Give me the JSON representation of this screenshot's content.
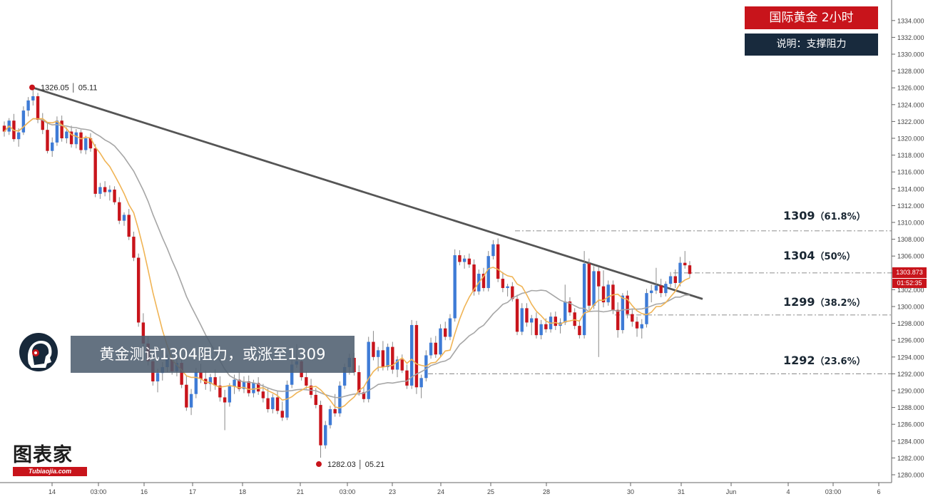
{
  "title": "国际黄金 2小时",
  "subtitle": "说明：支撑阻力",
  "headline": "黄金测试1304阻力，或涨至1309",
  "brand": {
    "name": "图表家",
    "site": "Tubiaojia.com",
    "avatar_icon": "trader-avatar-icon"
  },
  "colors": {
    "up": "#3e7bd6",
    "down": "#c8141b",
    "ma_fast": "#f0b455",
    "ma_slow": "#a6a6a6",
    "trendline": "#555555",
    "level_line": "#9a9a9a",
    "axis": "#666666"
  },
  "price_tag": "1303.873",
  "timer_tag": "01:52:35",
  "chart_data": {
    "type": "candlestick",
    "instrument": "国际黄金",
    "timeframe": "2小时",
    "y_axis": {
      "range": [
        1279,
        1335
      ],
      "ticks": [
        "1280.000",
        "1282.000",
        "1284.000",
        "1286.000",
        "1288.000",
        "1290.000",
        "1292.000",
        "1294.000",
        "1296.000",
        "1298.000",
        "1300.000",
        "1302.000",
        "1304.000",
        "1306.000",
        "1308.000",
        "1310.000",
        "1312.000",
        "1314.000",
        "1316.000",
        "1318.000",
        "1320.000",
        "1322.000",
        "1324.000",
        "1326.000",
        "1328.000",
        "1330.000",
        "1332.000",
        "1334.000"
      ]
    },
    "x_axis": {
      "ticks": [
        "14",
        "03:00",
        "16",
        "17",
        "18",
        "21",
        "03:00",
        "23",
        "24",
        "25",
        "28",
        "30",
        "31",
        "Jun",
        "4",
        "03:00",
        "6"
      ]
    },
    "levels": [
      {
        "price": 1309,
        "label": "1309",
        "pct": "（61.8%）"
      },
      {
        "price": 1304,
        "label": "1304",
        "pct": "（50%）"
      },
      {
        "price": 1299,
        "label": "1299",
        "pct": "（38.2%）"
      },
      {
        "price": 1292,
        "label": "1292",
        "pct": "（23.6%）"
      }
    ],
    "annotations": [
      {
        "label": "1326.05 │ 05.11",
        "price": 1326.05
      },
      {
        "label": "1282.03 │ 05.21",
        "price": 1282.03
      }
    ],
    "current_price": 1303.873,
    "candles": [
      [
        1321.5,
        1322.0,
        1320.2,
        1320.8
      ],
      [
        1320.8,
        1322.4,
        1320.4,
        1322.1
      ],
      [
        1322.1,
        1322.9,
        1319.6,
        1319.9
      ],
      [
        1319.9,
        1321.2,
        1319.0,
        1320.7
      ],
      [
        1320.7,
        1323.8,
        1320.4,
        1323.3
      ],
      [
        1323.3,
        1324.9,
        1322.6,
        1324.5
      ],
      [
        1324.5,
        1326.05,
        1323.9,
        1325.0
      ],
      [
        1325.0,
        1325.4,
        1321.8,
        1322.2
      ],
      [
        1322.2,
        1323.0,
        1320.5,
        1321.0
      ],
      [
        1321.0,
        1321.8,
        1318.2,
        1318.5
      ],
      [
        1318.5,
        1320.1,
        1317.8,
        1319.5
      ],
      [
        1319.5,
        1322.6,
        1319.1,
        1322.1
      ],
      [
        1322.1,
        1322.7,
        1319.6,
        1320.0
      ],
      [
        1320.0,
        1321.3,
        1319.4,
        1320.8
      ],
      [
        1320.8,
        1321.5,
        1318.9,
        1319.3
      ],
      [
        1319.3,
        1321.1,
        1318.8,
        1320.7
      ],
      [
        1320.7,
        1321.0,
        1318.2,
        1318.6
      ],
      [
        1318.6,
        1320.3,
        1318.1,
        1320.0
      ],
      [
        1320.0,
        1320.6,
        1318.4,
        1318.8
      ],
      [
        1318.8,
        1319.3,
        1313.0,
        1313.4
      ],
      [
        1313.4,
        1314.7,
        1312.8,
        1314.2
      ],
      [
        1314.2,
        1314.9,
        1313.1,
        1313.6
      ],
      [
        1313.6,
        1314.4,
        1312.6,
        1313.9
      ],
      [
        1313.9,
        1314.3,
        1312.1,
        1312.4
      ],
      [
        1312.4,
        1313.0,
        1309.8,
        1310.2
      ],
      [
        1310.2,
        1311.2,
        1309.6,
        1310.9
      ],
      [
        1310.9,
        1311.6,
        1307.9,
        1308.3
      ],
      [
        1308.3,
        1308.9,
        1305.4,
        1305.8
      ],
      [
        1305.8,
        1306.3,
        1297.6,
        1298.1
      ],
      [
        1298.1,
        1299.2,
        1295.1,
        1295.6
      ],
      [
        1295.6,
        1296.4,
        1293.0,
        1293.5
      ],
      [
        1293.5,
        1294.2,
        1290.6,
        1291.1
      ],
      [
        1291.1,
        1292.6,
        1289.8,
        1292.1
      ],
      [
        1292.1,
        1293.4,
        1291.2,
        1292.8
      ],
      [
        1292.8,
        1294.3,
        1292.2,
        1293.8
      ],
      [
        1293.8,
        1294.6,
        1291.9,
        1292.3
      ],
      [
        1292.3,
        1293.8,
        1291.7,
        1293.3
      ],
      [
        1293.3,
        1293.9,
        1290.3,
        1290.7
      ],
      [
        1290.7,
        1291.8,
        1287.6,
        1288.0
      ],
      [
        1288.0,
        1290.2,
        1287.1,
        1289.6
      ],
      [
        1289.6,
        1292.7,
        1289.1,
        1292.2
      ],
      [
        1292.2,
        1293.2,
        1290.9,
        1291.4
      ],
      [
        1291.4,
        1292.4,
        1290.1,
        1290.8
      ],
      [
        1290.8,
        1292.0,
        1289.9,
        1291.6
      ],
      [
        1291.6,
        1292.5,
        1290.1,
        1290.6
      ],
      [
        1290.6,
        1291.7,
        1288.7,
        1289.2
      ],
      [
        1289.2,
        1290.1,
        1285.3,
        1288.6
      ],
      [
        1288.6,
        1290.9,
        1288.1,
        1290.5
      ],
      [
        1290.5,
        1291.9,
        1289.6,
        1291.3
      ],
      [
        1291.3,
        1292.2,
        1289.9,
        1290.2
      ],
      [
        1290.2,
        1291.7,
        1289.7,
        1291.1
      ],
      [
        1291.1,
        1291.8,
        1289.3,
        1289.7
      ],
      [
        1289.7,
        1291.3,
        1289.2,
        1290.9
      ],
      [
        1290.9,
        1291.6,
        1289.5,
        1289.9
      ],
      [
        1289.9,
        1290.8,
        1288.6,
        1289.1
      ],
      [
        1289.1,
        1290.3,
        1287.4,
        1287.8
      ],
      [
        1287.8,
        1289.6,
        1287.3,
        1289.2
      ],
      [
        1289.2,
        1289.9,
        1287.2,
        1287.6
      ],
      [
        1287.6,
        1288.7,
        1286.4,
        1286.8
      ],
      [
        1286.8,
        1291.2,
        1286.5,
        1290.7
      ],
      [
        1290.7,
        1293.6,
        1290.3,
        1293.1
      ],
      [
        1293.1,
        1295.5,
        1292.7,
        1293.5
      ],
      [
        1293.5,
        1293.9,
        1291.2,
        1291.6
      ],
      [
        1291.6,
        1292.3,
        1290.2,
        1290.6
      ],
      [
        1290.6,
        1291.4,
        1289.1,
        1289.5
      ],
      [
        1289.5,
        1290.3,
        1287.9,
        1288.3
      ],
      [
        1288.3,
        1288.8,
        1282.03,
        1283.5
      ],
      [
        1283.5,
        1286.4,
        1283.1,
        1285.9
      ],
      [
        1285.9,
        1288.2,
        1285.5,
        1287.8
      ],
      [
        1287.8,
        1289.6,
        1286.9,
        1287.3
      ],
      [
        1287.3,
        1291.1,
        1286.9,
        1290.6
      ],
      [
        1290.6,
        1293.2,
        1290.2,
        1292.8
      ],
      [
        1292.8,
        1294.4,
        1291.9,
        1293.9
      ],
      [
        1293.9,
        1294.5,
        1291.8,
        1292.2
      ],
      [
        1292.2,
        1293.0,
        1289.4,
        1289.8
      ],
      [
        1289.8,
        1290.4,
        1288.6,
        1289.0
      ],
      [
        1289.0,
        1296.4,
        1288.6,
        1295.8
      ],
      [
        1295.8,
        1297.1,
        1293.6,
        1294.0
      ],
      [
        1294.0,
        1295.2,
        1292.3,
        1294.8
      ],
      [
        1294.8,
        1295.9,
        1292.4,
        1292.8
      ],
      [
        1292.8,
        1295.6,
        1292.4,
        1295.2
      ],
      [
        1295.2,
        1295.8,
        1292.0,
        1292.5
      ],
      [
        1292.5,
        1294.1,
        1291.6,
        1293.7
      ],
      [
        1293.7,
        1294.3,
        1292.1,
        1292.4
      ],
      [
        1292.4,
        1293.1,
        1290.2,
        1290.6
      ],
      [
        1290.6,
        1298.4,
        1290.2,
        1297.8
      ],
      [
        1297.8,
        1298.3,
        1289.6,
        1290.4
      ],
      [
        1290.4,
        1291.9,
        1289.1,
        1291.5
      ],
      [
        1291.5,
        1294.8,
        1291.1,
        1294.2
      ],
      [
        1294.2,
        1296.3,
        1293.8,
        1295.7
      ],
      [
        1295.7,
        1296.5,
        1293.9,
        1294.3
      ],
      [
        1294.3,
        1297.9,
        1294.0,
        1297.4
      ],
      [
        1297.4,
        1298.2,
        1296.0,
        1296.4
      ],
      [
        1296.4,
        1299.1,
        1296.0,
        1298.6
      ],
      [
        1298.6,
        1306.8,
        1298.2,
        1306.1
      ],
      [
        1306.1,
        1306.7,
        1304.9,
        1305.3
      ],
      [
        1305.3,
        1306.1,
        1304.5,
        1305.7
      ],
      [
        1305.7,
        1306.3,
        1304.6,
        1305.0
      ],
      [
        1305.0,
        1305.6,
        1301.3,
        1301.8
      ],
      [
        1301.8,
        1304.4,
        1301.4,
        1303.9
      ],
      [
        1303.9,
        1304.6,
        1301.8,
        1302.2
      ],
      [
        1302.2,
        1306.6,
        1301.8,
        1306.0
      ],
      [
        1306.0,
        1307.9,
        1305.6,
        1307.4
      ],
      [
        1307.4,
        1308.1,
        1302.9,
        1303.3
      ],
      [
        1303.3,
        1304.1,
        1301.7,
        1302.2
      ],
      [
        1302.2,
        1302.7,
        1301.2,
        1302.4
      ],
      [
        1302.4,
        1302.9,
        1300.6,
        1300.9
      ],
      [
        1300.9,
        1301.4,
        1296.6,
        1297.0
      ],
      [
        1297.0,
        1300.4,
        1296.6,
        1299.8
      ],
      [
        1299.8,
        1300.4,
        1297.6,
        1298.1
      ],
      [
        1298.1,
        1299.0,
        1296.6,
        1298.6
      ],
      [
        1298.6,
        1299.3,
        1296.2,
        1296.6
      ],
      [
        1296.6,
        1298.4,
        1296.1,
        1297.9
      ],
      [
        1297.9,
        1298.6,
        1296.9,
        1297.3
      ],
      [
        1297.3,
        1299.3,
        1296.9,
        1298.8
      ],
      [
        1298.8,
        1299.4,
        1297.2,
        1297.7
      ],
      [
        1297.7,
        1298.6,
        1296.8,
        1298.1
      ],
      [
        1298.1,
        1302.6,
        1297.8,
        1300.6
      ],
      [
        1300.6,
        1301.1,
        1298.9,
        1299.3
      ],
      [
        1299.3,
        1299.8,
        1297.3,
        1297.7
      ],
      [
        1297.7,
        1298.4,
        1296.2,
        1296.6
      ],
      [
        1296.6,
        1306.6,
        1296.2,
        1305.1
      ],
      [
        1305.1,
        1305.7,
        1299.6,
        1300.1
      ],
      [
        1300.1,
        1304.8,
        1299.7,
        1304.2
      ],
      [
        1304.2,
        1304.7,
        1294.0,
        1302.4
      ],
      [
        1302.4,
        1304.3,
        1299.9,
        1300.5
      ],
      [
        1300.5,
        1303.1,
        1300.1,
        1302.6
      ],
      [
        1302.6,
        1303.1,
        1299.1,
        1299.6
      ],
      [
        1299.6,
        1300.5,
        1296.3,
        1297.2
      ],
      [
        1297.2,
        1301.6,
        1296.8,
        1301.3
      ],
      [
        1301.3,
        1301.9,
        1298.6,
        1299.1
      ],
      [
        1299.1,
        1299.7,
        1297.6,
        1298.2
      ],
      [
        1298.2,
        1298.8,
        1296.4,
        1297.4
      ],
      [
        1297.4,
        1298.5,
        1296.2,
        1297.9
      ],
      [
        1297.9,
        1302.1,
        1297.5,
        1301.6
      ],
      [
        1301.6,
        1302.6,
        1300.5,
        1301.9
      ],
      [
        1301.9,
        1304.6,
        1301.5,
        1302.5
      ],
      [
        1302.5,
        1303.3,
        1301.1,
        1301.6
      ],
      [
        1301.6,
        1303.0,
        1301.2,
        1302.7
      ],
      [
        1302.7,
        1304.1,
        1302.3,
        1303.6
      ],
      [
        1303.6,
        1304.4,
        1302.2,
        1302.8
      ],
      [
        1302.8,
        1305.9,
        1302.4,
        1305.2
      ],
      [
        1305.2,
        1306.6,
        1304.5,
        1304.9
      ],
      [
        1304.9,
        1305.4,
        1303.4,
        1303.873
      ]
    ]
  }
}
